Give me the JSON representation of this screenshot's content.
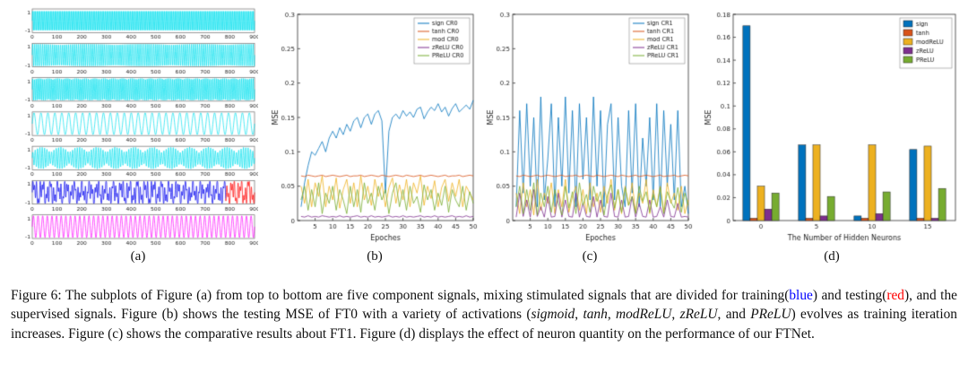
{
  "panel_a": {
    "label": "(a)",
    "x_ticks": [
      0,
      100,
      200,
      300,
      400,
      500,
      600,
      700,
      800,
      900
    ],
    "y_tick_top": "1",
    "y_tick_bottom": "-1",
    "subplots": [
      {
        "type": "sine",
        "freq": 150,
        "color": "#00E0EE"
      },
      {
        "type": "sine",
        "freq": 112,
        "color": "#00E0EE"
      },
      {
        "type": "sine",
        "freq": 132,
        "color": "#00E0EE"
      },
      {
        "type": "sine",
        "freq": 32,
        "color": "#00E0EE"
      },
      {
        "type": "am",
        "freq": 95,
        "mod": 6,
        "color": "#00E0EE"
      },
      {
        "type": "mix",
        "freqs": [
          28,
          64,
          118
        ],
        "colors": [
          "#0000EE",
          "#FF0000"
        ],
        "split": 0.87
      },
      {
        "type": "sine",
        "freq": 48,
        "color": "#FF00FF"
      }
    ]
  },
  "chart_data": [
    {
      "id": "b",
      "label": "(b)",
      "type": "line",
      "xlabel": "Epoches",
      "ylabel": "MSE",
      "xlim": [
        0,
        50
      ],
      "ylim": [
        0,
        0.3
      ],
      "xticks": [
        5,
        10,
        15,
        20,
        25,
        30,
        35,
        40,
        45,
        50
      ],
      "yticks": [
        0,
        0.05,
        0.1,
        0.15,
        0.2,
        0.25,
        0.3
      ],
      "legend_position": "top-right",
      "grid": false,
      "series": [
        {
          "name": "sign CR0",
          "color": "#0072BD",
          "values": [
            0.02,
            0.055,
            0.08,
            0.1,
            0.095,
            0.105,
            0.115,
            0.1,
            0.12,
            0.13,
            0.12,
            0.135,
            0.125,
            0.14,
            0.13,
            0.145,
            0.15,
            0.135,
            0.15,
            0.155,
            0.14,
            0.155,
            0.16,
            0.145,
            0.04,
            0.13,
            0.15,
            0.155,
            0.148,
            0.16,
            0.152,
            0.158,
            0.15,
            0.162,
            0.165,
            0.148,
            0.158,
            0.165,
            0.16,
            0.17,
            0.158,
            0.165,
            0.152,
            0.163,
            0.17,
            0.158,
            0.163,
            0.168,
            0.162,
            0.175
          ]
        },
        {
          "name": "tanh CR0",
          "color": "#D95319",
          "values": [
            0.065,
            0.064,
            0.066,
            0.065,
            0.064,
            0.065,
            0.066,
            0.064,
            0.065,
            0.066,
            0.065,
            0.064,
            0.065,
            0.066,
            0.064,
            0.065,
            0.065,
            0.066,
            0.064,
            0.065,
            0.066,
            0.065,
            0.064,
            0.066,
            0.065,
            0.064,
            0.065,
            0.066,
            0.065,
            0.064,
            0.066,
            0.065,
            0.064,
            0.065,
            0.066,
            0.064,
            0.065,
            0.066,
            0.065,
            0.064,
            0.065,
            0.066,
            0.064,
            0.065,
            0.065,
            0.066,
            0.064,
            0.065,
            0.066,
            0.065
          ]
        },
        {
          "name": "mod CR0",
          "color": "#EDB120",
          "values": [
            0.05,
            0.025,
            0.06,
            0.02,
            0.055,
            0.035,
            0.065,
            0.02,
            0.05,
            0.03,
            0.062,
            0.018,
            0.045,
            0.06,
            0.025,
            0.055,
            0.02,
            0.065,
            0.03,
            0.05,
            0.022,
            0.06,
            0.035,
            0.055,
            0.02,
            0.048,
            0.062,
            0.025,
            0.052,
            0.03,
            0.06,
            0.02,
            0.055,
            0.04,
            0.065,
            0.022,
            0.05,
            0.032,
            0.058,
            0.02,
            0.048,
            0.06,
            0.028,
            0.055,
            0.035,
            0.06,
            0.02,
            0.05,
            0.04,
            0.03
          ]
        },
        {
          "name": "zReLU CR0",
          "color": "#7E2F8E",
          "values": [
            0.006,
            0.005,
            0.007,
            0.005,
            0.006,
            0.005,
            0.007,
            0.006,
            0.005,
            0.006,
            0.005,
            0.007,
            0.005,
            0.006,
            0.005,
            0.006,
            0.007,
            0.005,
            0.006,
            0.005,
            0.007,
            0.005,
            0.006,
            0.005,
            0.006,
            0.007,
            0.005,
            0.006,
            0.005,
            0.007,
            0.005,
            0.006,
            0.005,
            0.006,
            0.007,
            0.005,
            0.006,
            0.005,
            0.007,
            0.005,
            0.006,
            0.005,
            0.006,
            0.007,
            0.005,
            0.006,
            0.005,
            0.007,
            0.005,
            0.006
          ]
        },
        {
          "name": "PReLU CR0",
          "color": "#77AC30",
          "values": [
            0.03,
            0.05,
            0.015,
            0.045,
            0.02,
            0.055,
            0.01,
            0.04,
            0.025,
            0.05,
            0.015,
            0.045,
            0.03,
            0.01,
            0.05,
            0.02,
            0.045,
            0.012,
            0.055,
            0.025,
            0.04,
            0.015,
            0.05,
            0.03,
            0.045,
            0.01,
            0.04,
            0.055,
            0.02,
            0.045,
            0.015,
            0.05,
            0.025,
            0.035,
            0.012,
            0.052,
            0.03,
            0.045,
            0.015,
            0.04,
            0.022,
            0.05,
            0.012,
            0.045,
            0.03,
            0.02,
            0.05,
            0.015,
            0.042,
            0.025
          ]
        }
      ]
    },
    {
      "id": "c",
      "label": "(c)",
      "type": "line",
      "xlabel": "Epoches",
      "ylabel": "MSE",
      "xlim": [
        0,
        50
      ],
      "ylim": [
        0,
        0.3
      ],
      "xticks": [
        5,
        10,
        15,
        20,
        25,
        30,
        35,
        40,
        45,
        50
      ],
      "yticks": [
        0,
        0.05,
        0.1,
        0.15,
        0.2,
        0.25,
        0.3
      ],
      "legend_position": "top-right",
      "grid": false,
      "series": [
        {
          "name": "sign CR1",
          "color": "#0072BD",
          "values": [
            0.02,
            0.16,
            0.04,
            0.17,
            0.05,
            0.15,
            0.02,
            0.18,
            0.03,
            0.09,
            0.17,
            0.02,
            0.15,
            0.05,
            0.18,
            0.04,
            0.16,
            0.02,
            0.17,
            0.06,
            0.15,
            0.03,
            0.18,
            0.05,
            0.16,
            0.02,
            0.14,
            0.17,
            0.03,
            0.15,
            0.05,
            0.02,
            0.16,
            0.04,
            0.17,
            0.02,
            0.12,
            0.05,
            0.15,
            0.03,
            0.17,
            0.02,
            0.16,
            0.05,
            0.14,
            0.03,
            0.16,
            0.02,
            0.05,
            0.01
          ]
        },
        {
          "name": "tanh CR1",
          "color": "#D95319",
          "values": [
            0.065,
            0.064,
            0.066,
            0.065,
            0.064,
            0.065,
            0.066,
            0.064,
            0.065,
            0.066,
            0.065,
            0.064,
            0.065,
            0.066,
            0.064,
            0.065,
            0.065,
            0.066,
            0.064,
            0.065,
            0.066,
            0.065,
            0.064,
            0.066,
            0.065,
            0.064,
            0.065,
            0.066,
            0.065,
            0.064,
            0.066,
            0.065,
            0.064,
            0.065,
            0.066,
            0.064,
            0.065,
            0.066,
            0.065,
            0.064,
            0.065,
            0.066,
            0.064,
            0.065,
            0.065,
            0.066,
            0.064,
            0.065,
            0.066,
            0.065
          ]
        },
        {
          "name": "mod CR1",
          "color": "#EDB120",
          "values": [
            0.04,
            0.01,
            0.055,
            0.02,
            0.045,
            0.008,
            0.06,
            0.015,
            0.04,
            0.025,
            0.055,
            0.01,
            0.045,
            0.02,
            0.06,
            0.012,
            0.035,
            0.05,
            0.015,
            0.045,
            0.01,
            0.055,
            0.02,
            0.04,
            0.012,
            0.05,
            0.025,
            0.06,
            0.015,
            0.045,
            0.01,
            0.05,
            0.022,
            0.055,
            0.012,
            0.04,
            0.025,
            0.06,
            0.01,
            0.045,
            0.02,
            0.05,
            0.012,
            0.055,
            0.025,
            0.04,
            0.015,
            0.05,
            0.01,
            0.03
          ]
        },
        {
          "name": "zReLU CR1",
          "color": "#7E2F8E",
          "values": [
            0.005,
            0.04,
            0.006,
            0.03,
            0.005,
            0.045,
            0.006,
            0.02,
            0.005,
            0.035,
            0.005,
            0.006,
            0.04,
            0.005,
            0.03,
            0.006,
            0.005,
            0.04,
            0.005,
            0.025,
            0.006,
            0.005,
            0.035,
            0.005,
            0.03,
            0.006,
            0.005,
            0.04,
            0.006,
            0.005,
            0.03,
            0.005,
            0.006,
            0.035,
            0.005,
            0.025,
            0.006,
            0.005,
            0.03,
            0.005,
            0.006,
            0.02,
            0.005,
            0.03,
            0.006,
            0.005,
            0.025,
            0.005,
            0.006,
            0.005
          ]
        },
        {
          "name": "PReLU CR1",
          "color": "#77AC30",
          "values": [
            0.02,
            0.05,
            0.01,
            0.045,
            0.015,
            0.055,
            0.008,
            0.04,
            0.02,
            0.05,
            0.012,
            0.045,
            0.025,
            0.008,
            0.05,
            0.018,
            0.042,
            0.01,
            0.055,
            0.022,
            0.038,
            0.012,
            0.05,
            0.028,
            0.042,
            0.008,
            0.038,
            0.052,
            0.018,
            0.045,
            0.012,
            0.048,
            0.022,
            0.035,
            0.01,
            0.05,
            0.028,
            0.042,
            0.012,
            0.038,
            0.02,
            0.048,
            0.01,
            0.042,
            0.028,
            0.018,
            0.048,
            0.012,
            0.04,
            0.022
          ]
        }
      ]
    },
    {
      "id": "d",
      "label": "(d)",
      "type": "bar",
      "xlabel": "The Number of Hidden Neurons",
      "ylabel": "MSE",
      "categories": [
        "0",
        "5",
        "10",
        "15"
      ],
      "ylim": [
        0,
        0.18
      ],
      "yticks": [
        0,
        0.02,
        0.04,
        0.06,
        0.08,
        0.1,
        0.12,
        0.14,
        0.16,
        0.18
      ],
      "legend_position": "top-right",
      "grid": false,
      "series": [
        {
          "name": "sign",
          "color": "#0072BD",
          "values": [
            0.17,
            0.066,
            0.004,
            0.062
          ]
        },
        {
          "name": "tanh",
          "color": "#D95319",
          "values": [
            0.002,
            0.002,
            0.002,
            0.002
          ]
        },
        {
          "name": "modReLU",
          "color": "#EDB120",
          "values": [
            0.03,
            0.066,
            0.066,
            0.065
          ]
        },
        {
          "name": "zReLU",
          "color": "#7E2F8E",
          "values": [
            0.01,
            0.004,
            0.006,
            0.002
          ]
        },
        {
          "name": "PReLU",
          "color": "#77AC30",
          "values": [
            0.024,
            0.021,
            0.025,
            0.028
          ]
        }
      ]
    }
  ],
  "caption": {
    "blue": "#0000FF",
    "red": "#FF0000",
    "segments": [
      {
        "t": "Figure 6: The subplots of Figure (a) from top to bottom are five component signals, mixing stimulated signals that are divided for training(",
        "s": "n"
      },
      {
        "t": "blue",
        "s": "blue"
      },
      {
        "t": ") and testing(",
        "s": "n"
      },
      {
        "t": "red",
        "s": "red"
      },
      {
        "t": "), and the supervised signals. Figure (b) shows the testing MSE of FT0 with a variety of activations (",
        "s": "n"
      },
      {
        "t": "sigmoid",
        "s": "i"
      },
      {
        "t": ", ",
        "s": "n"
      },
      {
        "t": "tanh",
        "s": "i"
      },
      {
        "t": ", ",
        "s": "n"
      },
      {
        "t": "modReLU",
        "s": "i"
      },
      {
        "t": ", ",
        "s": "n"
      },
      {
        "t": "zReLU",
        "s": "i"
      },
      {
        "t": ", and ",
        "s": "n"
      },
      {
        "t": "PReLU",
        "s": "i"
      },
      {
        "t": ") evolves as training iteration increases. Figure (c) shows the comparative results about FT1. Figure (d) displays the effect of neuron quantity on the performance of our FTNet.",
        "s": "n"
      }
    ]
  }
}
